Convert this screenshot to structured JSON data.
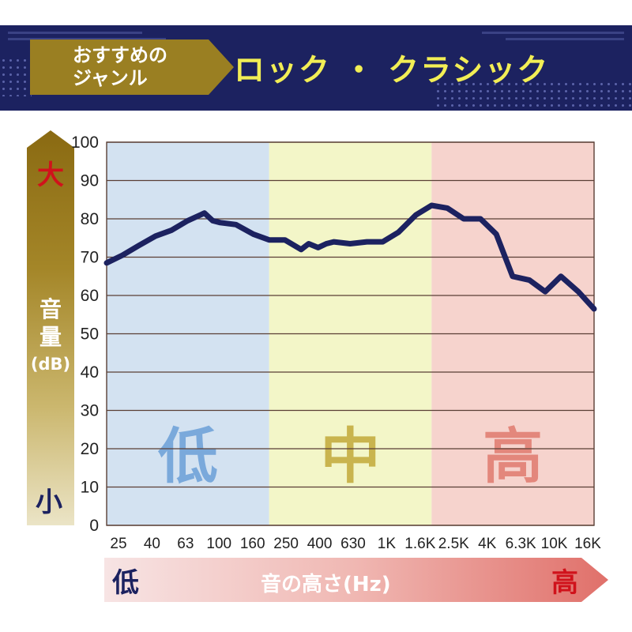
{
  "header": {
    "genre_label_line1": "おすすめの",
    "genre_label_line2": "ジャンル",
    "genre_value": "ロック ・ クラシック"
  },
  "y_axis_arrow": {
    "top_label": "大",
    "bottom_label": "小",
    "title_line1": "音",
    "title_line2": "量",
    "title_unit": "(dB)"
  },
  "x_axis_arrow": {
    "left_label": "低",
    "right_label": "高",
    "title": "音の高さ(Hz)"
  },
  "colors": {
    "header_bg": "#1c2260",
    "label_box": "#9a7f22",
    "genre_text": "#f2ee55",
    "line": "#1c2260",
    "low_band": "#d3e2f1",
    "mid_band": "#f3f6c8",
    "high_band": "#f6d3cd",
    "low_label": "#7aa9db",
    "mid_label": "#c9b44e",
    "high_label": "#e3877c"
  },
  "chart_data": {
    "type": "line",
    "title": "",
    "xlabel": "音の高さ(Hz)",
    "ylabel": "音量(dB)",
    "ylim": [
      0,
      100
    ],
    "yticks": [
      0,
      10,
      20,
      30,
      40,
      50,
      60,
      70,
      80,
      90,
      100
    ],
    "xticks": [
      "25",
      "40",
      "63",
      "100",
      "160",
      "250",
      "400",
      "630",
      "1K",
      "1.6K",
      "2.5K",
      "4K",
      "6.3K",
      "10K",
      "16K"
    ],
    "x_scale": "log",
    "x_range_hz": [
      20,
      20000
    ],
    "grid": "horizontal",
    "bands": [
      {
        "label": "低",
        "from_hz": 20,
        "to_hz": 200
      },
      {
        "label": "中",
        "from_hz": 200,
        "to_hz": 2000
      },
      {
        "label": "高",
        "from_hz": 2000,
        "to_hz": 20000
      }
    ],
    "series": [
      {
        "x": [
          20,
          25,
          31.5,
          40,
          50,
          63,
          80,
          90,
          100,
          125,
          160,
          200,
          250,
          315,
          350,
          400,
          450,
          500,
          630,
          800,
          1000,
          1250,
          1600,
          2000,
          2500,
          3150,
          4000,
          5000,
          6300,
          8000,
          10000,
          12500,
          16000,
          20000
        ],
        "y": [
          68.5,
          70.5,
          73,
          75.5,
          77,
          79.5,
          81.5,
          79.5,
          79,
          78.5,
          76,
          74.5,
          74.5,
          72,
          73.5,
          72.5,
          73.5,
          74,
          73.5,
          74,
          74,
          76.5,
          81,
          83.5,
          82.8,
          80,
          80,
          76,
          65,
          64,
          61,
          65,
          61,
          56.5
        ]
      }
    ]
  }
}
